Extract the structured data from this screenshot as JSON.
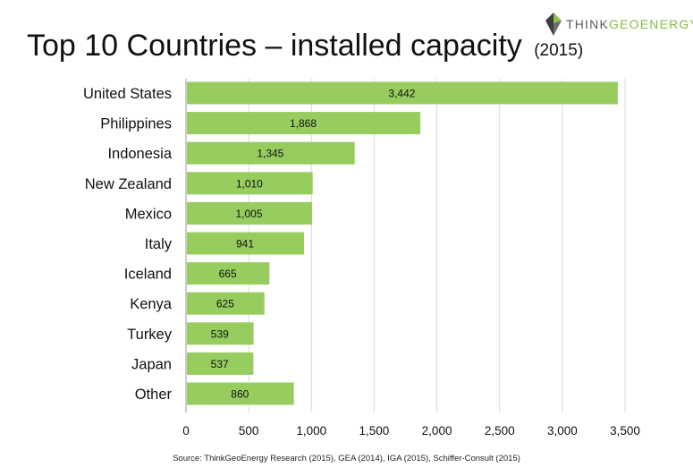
{
  "logo": {
    "brand_prefix": "THINK",
    "brand_suffix": "GEOENERGY"
  },
  "title": {
    "main": "Top 10 Countries – installed capacity",
    "year": "(2015)"
  },
  "source": "Source: ThinkGeoEnergy Research (2015), GEA (2014), IGA (2015), Schiffer-Consult (2015)",
  "colors": {
    "bar": "#97cc5e",
    "grid": "#d9d9d9",
    "axis": "#9a9a9a",
    "accent": "#7fbf3f"
  },
  "chart_data": {
    "type": "bar",
    "orientation": "horizontal",
    "title": "Top 10 Countries – installed capacity (2015)",
    "categories": [
      "United States",
      "Philippines",
      "Indonesia",
      "New Zealand",
      "Mexico",
      "Italy",
      "Iceland",
      "Kenya",
      "Turkey",
      "Japan",
      "Other"
    ],
    "values": [
      3442,
      1868,
      1345,
      1010,
      1005,
      941,
      665,
      625,
      539,
      537,
      860
    ],
    "data_labels": [
      "3,442",
      "1,868",
      "1,345",
      "1,010",
      "1,005",
      "941",
      "665",
      "625",
      "539",
      "537",
      "860"
    ],
    "xlim": [
      0,
      3500
    ],
    "xticks": [
      0,
      500,
      1000,
      1500,
      2000,
      2500,
      3000,
      3500
    ],
    "xtick_labels": [
      "0",
      "500",
      "1,000",
      "1,500",
      "2,000",
      "2,500",
      "3,000",
      "3,500"
    ],
    "grid": true,
    "xlabel": "",
    "ylabel": ""
  }
}
